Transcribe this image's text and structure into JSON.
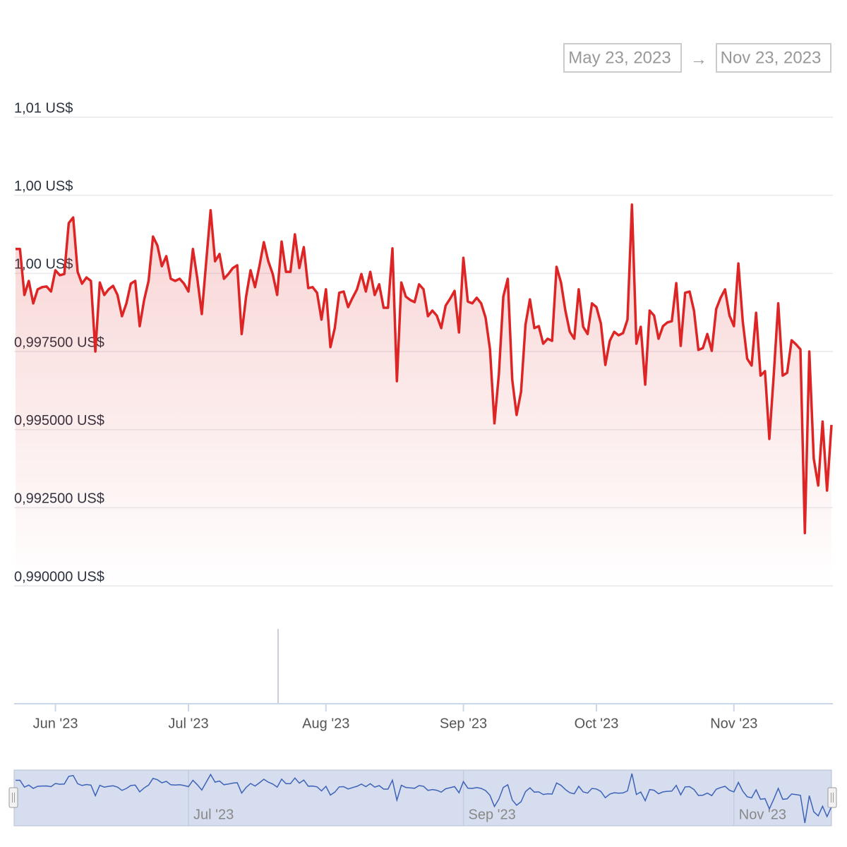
{
  "chart_data": {
    "type": "line",
    "range_from": "May 23, 2023",
    "range_separator": "→",
    "range_to": "Nov 23, 2023",
    "color": "#dd2525",
    "values": [
      1.00078,
      1.00078,
      0.99931,
      0.99976,
      0.99904,
      0.99949,
      0.99956,
      0.99958,
      0.99942,
      1.0001,
      0.99994,
      0.99998,
      1.00161,
      1.00179,
      1.00005,
      0.99967,
      0.99987,
      0.99976,
      0.9975,
      0.99971,
      0.99931,
      0.99949,
      0.9996,
      0.99931,
      0.99863,
      0.99904,
      0.99967,
      0.99976,
      0.99831,
      0.99915,
      0.99976,
      1.00118,
      1.00089,
      1.00023,
      1.00055,
      0.99983,
      0.99976,
      0.99983,
      0.99967,
      0.99942,
      1.00078,
      0.99983,
      0.9987,
      1.00039,
      1.00202,
      1.00039,
      1.00062,
      0.99983,
      0.99998,
      1.00017,
      1.00026,
      0.99806,
      0.99926,
      1.0001,
      0.99956,
      1.00023,
      1.001,
      1.00039,
      0.99998,
      0.99931,
      1.00102,
      1.00005,
      1.00005,
      1.00125,
      1.00017,
      1.00084,
      0.99953,
      0.99956,
      0.99938,
      0.99852,
      0.99949,
      0.99764,
      0.99825,
      0.99938,
      0.99942,
      0.99892,
      0.99922,
      0.99949,
      0.99998,
      0.99942,
      1.00005,
      0.99931,
      0.99965,
      0.9989,
      0.9989,
      1.0008,
      0.99655,
      0.99971,
      0.99926,
      0.99915,
      0.99908,
      0.99965,
      0.99949,
      0.99863,
      0.99881,
      0.99865,
      0.99825,
      0.99897,
      0.99919,
      0.99944,
      0.99811,
      1.0005,
      0.9991,
      0.99904,
      0.99922,
      0.99904,
      0.99858,
      0.99757,
      0.9952,
      0.99678,
      0.99926,
      0.99983,
      0.9966,
      0.99547,
      0.99621,
      0.99836,
      0.99917,
      0.99825,
      0.99831,
      0.99775,
      0.99791,
      0.99784,
      1.00021,
      0.99971,
      0.99881,
      0.99813,
      0.99791,
      0.99949,
      0.99829,
      0.99806,
      0.99904,
      0.99892,
      0.9984,
      0.99707,
      0.99784,
      0.99813,
      0.99802,
      0.99809,
      0.99852,
      1.0022,
      0.99775,
      0.99829,
      0.99644,
      0.99881,
      0.99865,
      0.99791,
      0.99831,
      0.99843,
      0.99847,
      0.99969,
      0.99768,
      0.99938,
      0.99942,
      0.99881,
      0.99755,
      0.99761,
      0.99806,
      0.99752,
      0.99886,
      0.99922,
      0.99949,
      0.99865,
      0.99831,
      1.00032,
      0.99847,
      0.99727,
      0.99705,
      0.99874,
      0.99673,
      0.99687,
      0.9947,
      0.99678,
      0.99904,
      0.99673,
      0.99682,
      0.99786,
      0.99773,
      0.99757,
      0.99169,
      0.9975,
      0.99407,
      0.99321,
      0.99526,
      0.99305,
      0.99515
    ],
    "ylim": [
      0.99,
      1.005
    ],
    "yticks": [
      {
        "value": 0.99,
        "label": "0,990000 US$"
      },
      {
        "value": 0.9925,
        "label": "0,992500 US$"
      },
      {
        "value": 0.995,
        "label": "0,995000 US$"
      },
      {
        "value": 0.9975,
        "label": "0,997500 US$"
      },
      {
        "value": 1.0,
        "label": "1,00 US$"
      },
      {
        "value": 1.0025,
        "label": "1,00 US$"
      },
      {
        "value": 1.005,
        "label": "1,01 US$"
      }
    ],
    "xticks": [
      "Jun '23",
      "Jul '23",
      "Aug '23",
      "Sep '23",
      "Oct '23",
      "Nov '23"
    ],
    "grid": true,
    "navigator": {
      "color": "#3d63b8",
      "xticks": [
        "Jul '23",
        "Sep '23",
        "Nov '23"
      ]
    }
  }
}
